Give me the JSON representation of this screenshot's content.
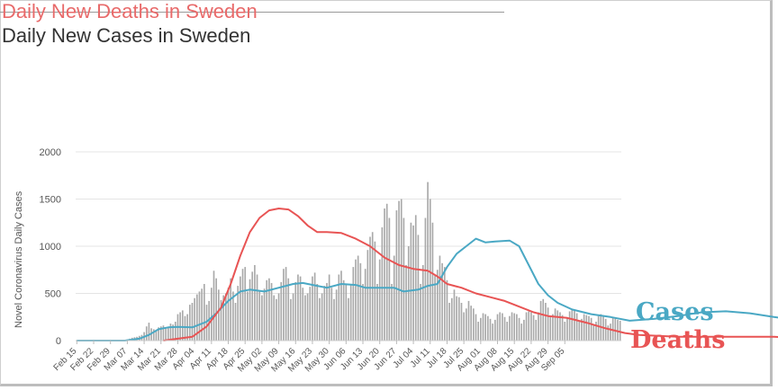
{
  "titles": {
    "deaths_title": "Daily New Deaths in Sweden",
    "cases_title": "Daily New Cases in Sweden"
  },
  "legend": {
    "cases": "Cases",
    "deaths": "Deaths",
    "cases_color": "#4aa8c4",
    "deaths_color": "#e85454"
  },
  "chart_data": {
    "type": "bar",
    "title": "Daily New Cases in Sweden",
    "overlay_title": "Daily New Deaths in Sweden",
    "xlabel": "",
    "ylabel": "Novel Coronavirus Daily Cases",
    "ylim": [
      0,
      2000
    ],
    "yticks": [
      0,
      500,
      1000,
      1500,
      2000
    ],
    "grid": true,
    "legend_position": "right",
    "x_tick_labels": [
      "Feb 15",
      "Feb 22",
      "Feb 29",
      "Mar 07",
      "Mar 14",
      "Mar 21",
      "Mar 28",
      "Apr 04",
      "Apr 11",
      "Apr 18",
      "Apr 25",
      "May 02",
      "May 09",
      "May 16",
      "May 23",
      "May 30",
      "Jun 06",
      "Jun 13",
      "Jun 20",
      "Jun 27",
      "Jul 04",
      "Jul 11",
      "Jul 18",
      "Jul 25",
      "Aug 01",
      "Aug 08",
      "Aug 15",
      "Aug 22",
      "Aug 29",
      "Sep 05"
    ],
    "series": [
      {
        "name": "Cases",
        "type": "bar",
        "color": "#a9a9a9",
        "values": [
          1,
          0,
          0,
          1,
          0,
          2,
          0,
          1,
          0,
          0,
          1,
          2,
          0,
          1,
          0,
          2,
          3,
          1,
          5,
          6,
          8,
          12,
          20,
          30,
          35,
          40,
          50,
          60,
          90,
          150,
          190,
          130,
          120,
          110,
          140,
          150,
          160,
          130,
          140,
          180,
          170,
          200,
          280,
          300,
          320,
          260,
          280,
          380,
          400,
          450,
          490,
          520,
          550,
          600,
          380,
          420,
          560,
          740,
          660,
          540,
          430,
          480,
          500,
          560,
          660,
          520,
          400,
          580,
          680,
          760,
          780,
          520,
          650,
          730,
          800,
          700,
          520,
          480,
          550,
          640,
          660,
          610,
          480,
          440,
          500,
          620,
          760,
          780,
          660,
          440,
          500,
          620,
          700,
          680,
          560,
          480,
          500,
          570,
          680,
          720,
          600,
          450,
          500,
          580,
          610,
          700,
          560,
          440,
          540,
          700,
          740,
          640,
          600,
          450,
          600,
          780,
          860,
          900,
          820,
          600,
          760,
          960,
          1100,
          1150,
          1050,
          600,
          860,
          1200,
          1400,
          1450,
          1300,
          600,
          900,
          1380,
          1480,
          1500,
          1300,
          800,
          1000,
          1250,
          1220,
          1330,
          1120,
          600,
          800,
          1300,
          1680,
          1500,
          1250,
          700,
          750,
          900,
          820,
          780,
          640,
          400,
          450,
          540,
          470,
          460,
          400,
          300,
          340,
          420,
          370,
          340,
          280,
          200,
          240,
          290,
          280,
          260,
          230,
          180,
          220,
          280,
          300,
          290,
          250,
          200,
          260,
          300,
          290,
          280,
          240,
          180,
          220,
          300,
          310,
          300,
          270,
          220,
          300,
          420,
          440,
          400,
          350,
          260,
          280,
          340,
          320,
          300,
          270,
          200,
          240,
          310,
          330,
          320,
          290,
          210,
          230,
          280,
          270,
          260,
          240,
          170,
          200,
          260,
          280,
          260,
          230,
          160,
          180,
          250,
          240,
          220,
          210
        ]
      },
      {
        "name": "Cases trend",
        "type": "line",
        "color": "#4aa8c4",
        "values": [
          [
            0,
            0
          ],
          [
            20,
            0
          ],
          [
            26,
            20
          ],
          [
            30,
            60
          ],
          [
            34,
            120
          ],
          [
            38,
            140
          ],
          [
            42,
            145
          ],
          [
            48,
            140
          ],
          [
            54,
            200
          ],
          [
            58,
            290
          ],
          [
            63,
            420
          ],
          [
            68,
            520
          ],
          [
            72,
            540
          ],
          [
            78,
            520
          ],
          [
            84,
            560
          ],
          [
            90,
            600
          ],
          [
            94,
            610
          ],
          [
            100,
            580
          ],
          [
            104,
            560
          ],
          [
            110,
            600
          ],
          [
            116,
            590
          ],
          [
            120,
            560
          ],
          [
            126,
            560
          ],
          [
            132,
            560
          ],
          [
            136,
            520
          ],
          [
            142,
            540
          ],
          [
            146,
            580
          ],
          [
            150,
            600
          ],
          [
            154,
            780
          ],
          [
            158,
            920
          ],
          [
            162,
            1000
          ],
          [
            166,
            1080
          ],
          [
            170,
            1040
          ],
          [
            174,
            1050
          ],
          [
            180,
            1060
          ],
          [
            184,
            1000
          ],
          [
            188,
            800
          ],
          [
            192,
            600
          ],
          [
            196,
            480
          ],
          [
            200,
            400
          ],
          [
            206,
            330
          ],
          [
            214,
            280
          ],
          [
            222,
            250
          ],
          [
            230,
            210
          ],
          [
            240,
            230
          ],
          [
            250,
            260
          ],
          [
            260,
            300
          ],
          [
            270,
            310
          ],
          [
            280,
            290
          ],
          [
            290,
            250
          ],
          [
            300,
            220
          ],
          [
            306,
            190
          ],
          [
            312,
            200
          ],
          [
            318,
            220
          ]
        ]
      },
      {
        "name": "Deaths trend",
        "type": "line",
        "color": "#e85454",
        "values": [
          [
            36,
            0
          ],
          [
            42,
            20
          ],
          [
            48,
            40
          ],
          [
            54,
            150
          ],
          [
            60,
            350
          ],
          [
            64,
            600
          ],
          [
            68,
            900
          ],
          [
            72,
            1150
          ],
          [
            76,
            1300
          ],
          [
            80,
            1380
          ],
          [
            84,
            1400
          ],
          [
            88,
            1390
          ],
          [
            92,
            1320
          ],
          [
            96,
            1220
          ],
          [
            100,
            1150
          ],
          [
            104,
            1150
          ],
          [
            110,
            1140
          ],
          [
            116,
            1080
          ],
          [
            122,
            1000
          ],
          [
            128,
            880
          ],
          [
            134,
            800
          ],
          [
            140,
            760
          ],
          [
            146,
            740
          ],
          [
            150,
            680
          ],
          [
            154,
            600
          ],
          [
            160,
            560
          ],
          [
            166,
            500
          ],
          [
            172,
            460
          ],
          [
            178,
            420
          ],
          [
            184,
            360
          ],
          [
            190,
            300
          ],
          [
            196,
            260
          ],
          [
            204,
            240
          ],
          [
            212,
            190
          ],
          [
            220,
            130
          ],
          [
            228,
            80
          ],
          [
            234,
            60
          ],
          [
            250,
            40
          ],
          [
            270,
            40
          ],
          [
            290,
            40
          ],
          [
            300,
            30
          ],
          [
            318,
            30
          ]
        ]
      }
    ]
  }
}
